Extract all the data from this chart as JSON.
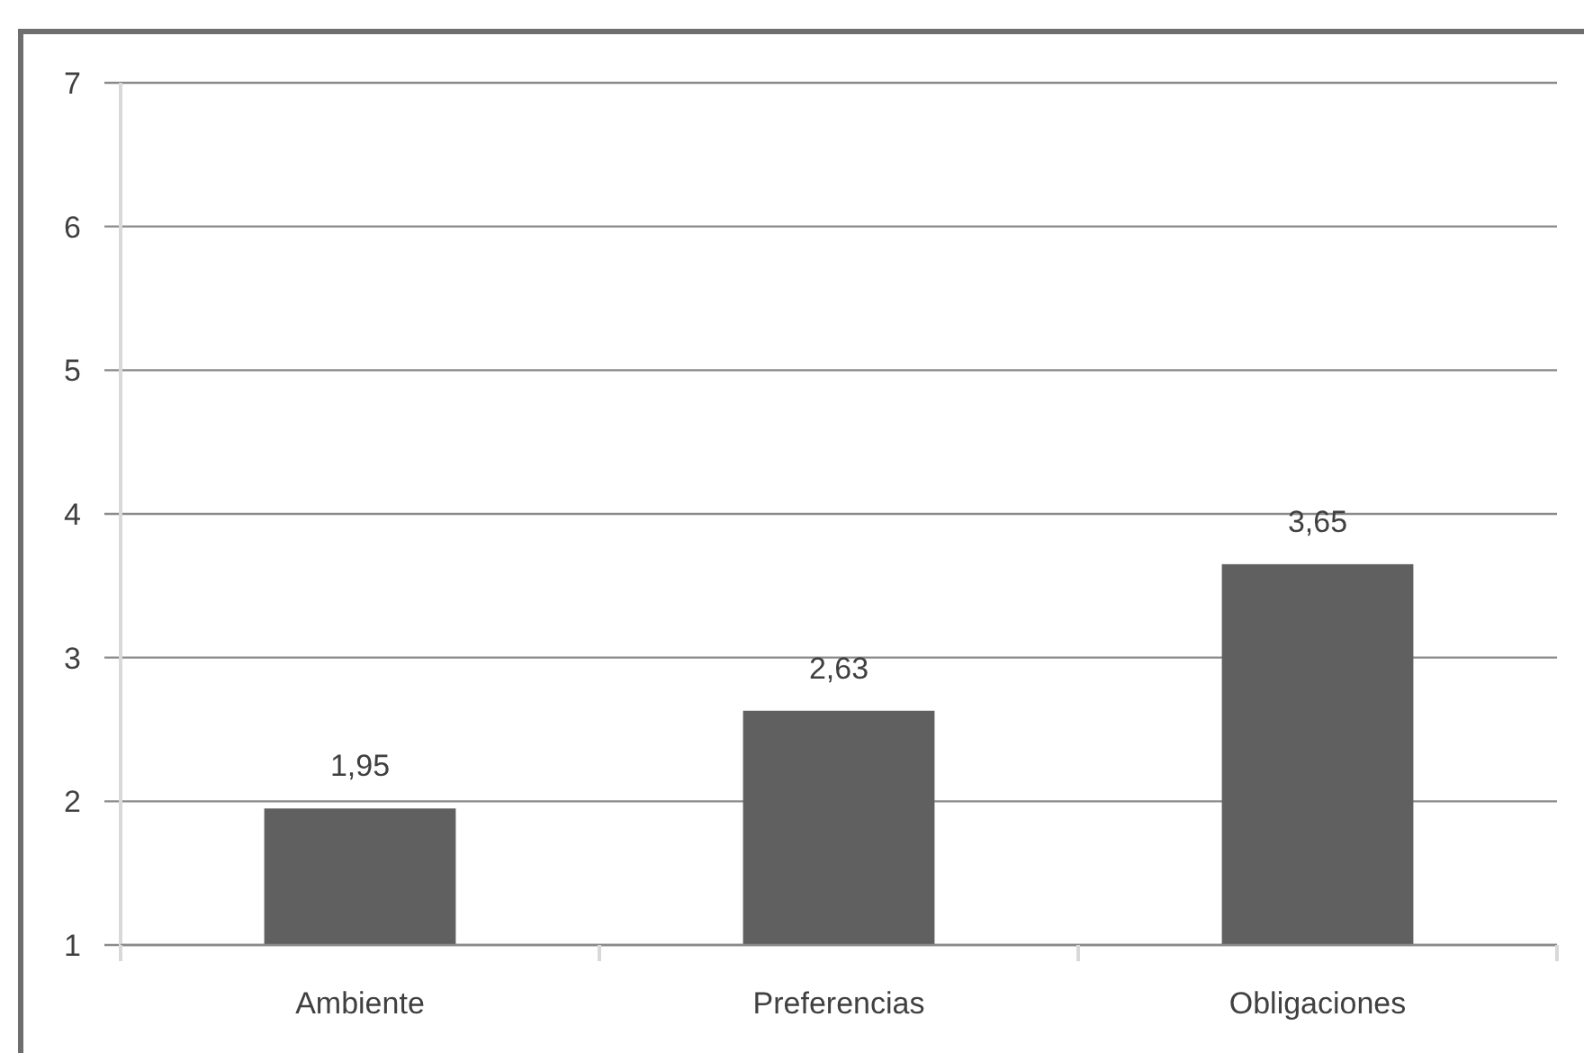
{
  "chart_data": {
    "type": "bar",
    "categories": [
      "Ambiente",
      "Preferencias",
      "Obligaciones"
    ],
    "values": [
      1.95,
      2.63,
      3.65
    ],
    "color": "#606060",
    "value_labels": [
      "1,95",
      "2,63",
      "3,65"
    ],
    "ylim": [
      1,
      7
    ],
    "yticks": [
      1,
      2,
      3,
      4,
      5,
      6,
      7
    ],
    "grid": "y"
  }
}
